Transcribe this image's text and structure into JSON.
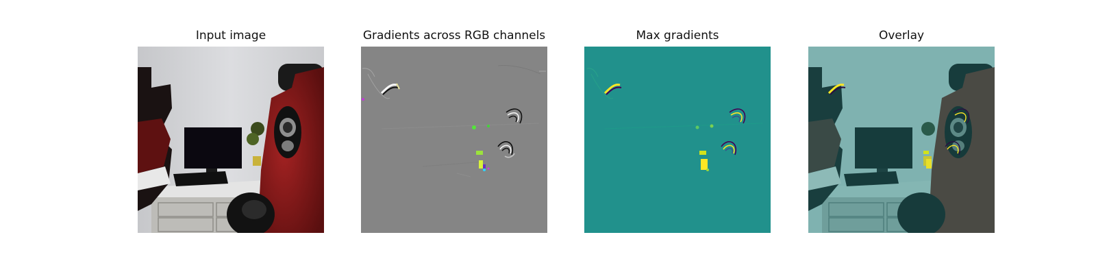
{
  "figure": {
    "panels": [
      {
        "title": "Input image",
        "kind": "photo"
      },
      {
        "title": "Gradients across RGB channels",
        "kind": "rgb-gradient"
      },
      {
        "title": "Max gradients",
        "kind": "max-gradient",
        "colormap": "viridis"
      },
      {
        "title": "Overlay",
        "kind": "overlay"
      }
    ]
  },
  "colors": {
    "wall": "#d5d6d8",
    "robot_red": "#8e1a1a",
    "robot_black": "#141414",
    "desk": "#e2e2e2",
    "gradient_gray": "#858585",
    "viridis_mid": "#21918c",
    "viridis_high": "#fde725",
    "overlay_teal": "#2a8a87"
  }
}
